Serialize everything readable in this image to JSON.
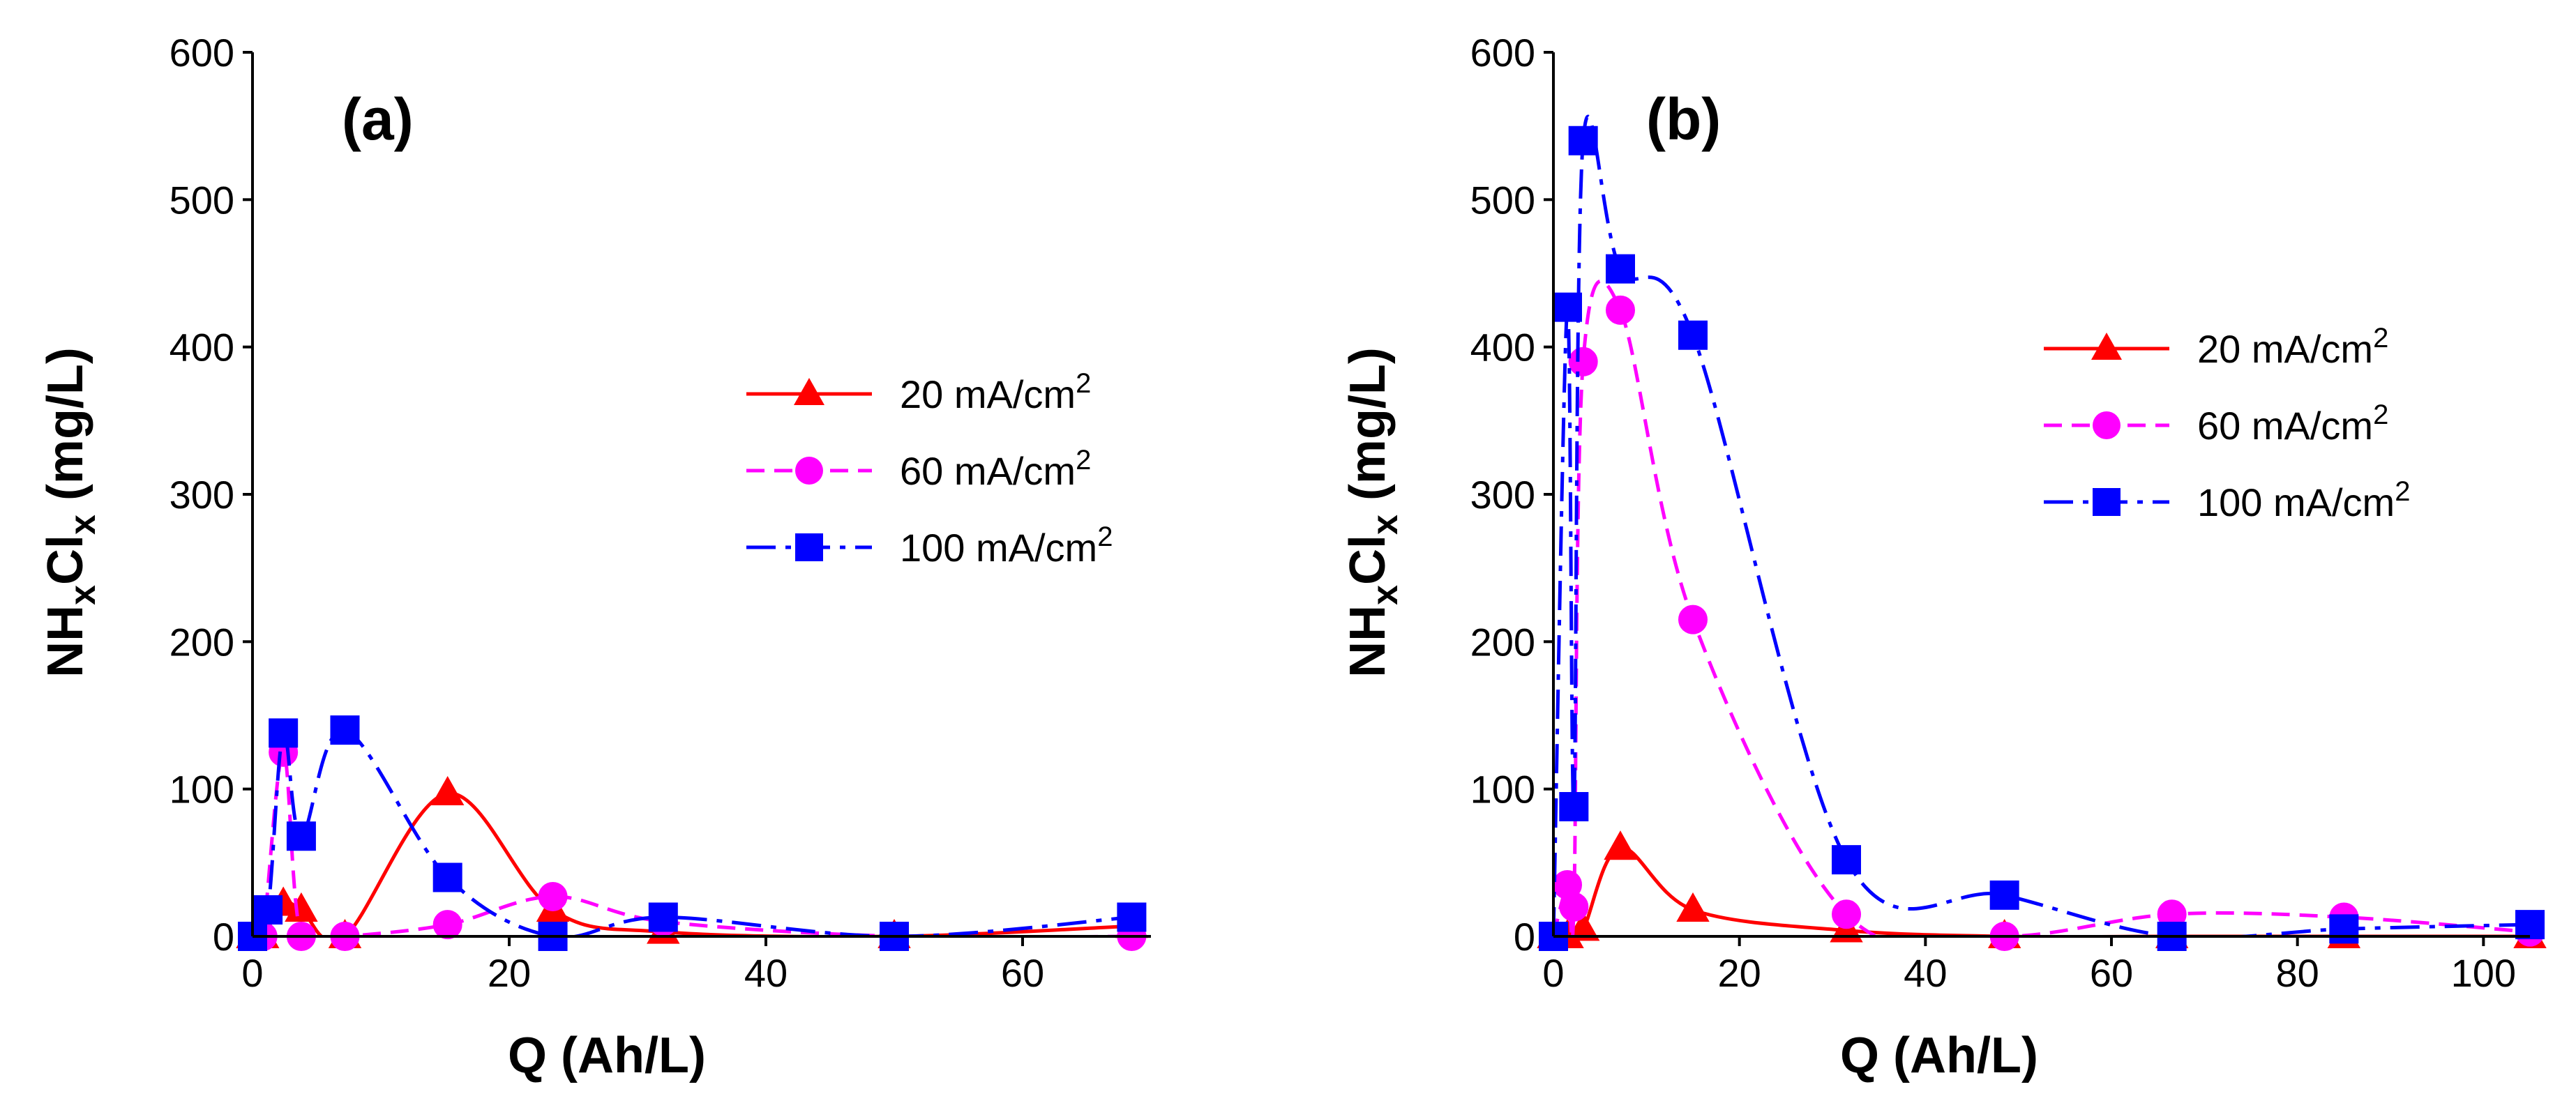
{
  "chart_data": [
    {
      "type": "line",
      "panel_label": "(a)",
      "xlabel": "Q (Ah/L)",
      "ylabel": {
        "base": "NH",
        "sub1": "x",
        "mid": "Cl",
        "sub2": "x",
        "unit": " (mg/L)"
      },
      "xlim": [
        0,
        70
      ],
      "ylim": [
        0,
        600
      ],
      "xticks": [
        0,
        20,
        40,
        60
      ],
      "yticks": [
        0,
        100,
        200,
        300,
        400,
        500,
        600
      ],
      "xtick_labels": [
        "0",
        "20",
        "40",
        "60"
      ],
      "ytick_labels": [
        "0",
        "100",
        "200",
        "300",
        "400",
        "500",
        "600"
      ],
      "legend_position": "center-right",
      "series": [
        {
          "name": "20 mA/cm",
          "superscript": "2",
          "color": "#ff0000",
          "marker": "triangle",
          "dash": "solid",
          "x": [
            0,
            0.8,
            2.4,
            3.8,
            7.2,
            15.2,
            23.4,
            32,
            50,
            68.5
          ],
          "y": [
            0,
            0,
            22,
            18,
            0,
            97,
            18,
            3,
            0,
            7
          ]
        },
        {
          "name": "60 mA/cm",
          "superscript": "2",
          "color": "#ff00ff",
          "marker": "circle",
          "dash": "dash",
          "x": [
            0,
            0.8,
            2.4,
            3.8,
            7.2,
            15.2,
            23.4,
            32,
            50,
            68.5
          ],
          "y": [
            0,
            0,
            125,
            0,
            0,
            8,
            27,
            10,
            0,
            0
          ]
        },
        {
          "name": "100 mA/cm",
          "superscript": "2",
          "color": "#0000ff",
          "marker": "square",
          "dash": "dashdot",
          "x": [
            0,
            1.2,
            2.4,
            3.8,
            7.2,
            15.2,
            23.4,
            32,
            50,
            68.5
          ],
          "y": [
            0,
            18,
            138,
            68,
            140,
            40,
            0,
            13,
            0,
            13
          ]
        }
      ]
    },
    {
      "type": "line",
      "panel_label": "(b)",
      "xlabel": "Q (Ah/L)",
      "ylabel": {
        "base": "NH",
        "sub1": "x",
        "mid": "Cl",
        "sub2": "x",
        "unit": " (mg/L)"
      },
      "xlim": [
        0,
        105
      ],
      "ylim": [
        0,
        600
      ],
      "xticks": [
        0,
        20,
        40,
        60,
        80,
        100
      ],
      "yticks": [
        0,
        100,
        200,
        300,
        400,
        500,
        600
      ],
      "xtick_labels": [
        "0",
        "20",
        "40",
        "60",
        "80",
        "100"
      ],
      "ytick_labels": [
        "0",
        "100",
        "200",
        "300",
        "400",
        "500",
        "600"
      ],
      "legend_position": "center-right",
      "series": [
        {
          "name": "20 mA/cm",
          "superscript": "2",
          "color": "#ff0000",
          "marker": "triangle",
          "dash": "solid",
          "x": [
            0,
            1.5,
            3.2,
            7.2,
            15,
            31.5,
            48.5,
            66.5,
            85,
            105
          ],
          "y": [
            0,
            0,
            5,
            60,
            18,
            4,
            0,
            0,
            0,
            0
          ]
        },
        {
          "name": "60 mA/cm",
          "superscript": "2",
          "color": "#ff00ff",
          "marker": "circle",
          "dash": "dash",
          "x": [
            0,
            1.5,
            2.2,
            3.2,
            7.2,
            15,
            31.5,
            48.5,
            66.5,
            85,
            105
          ],
          "y": [
            0,
            35,
            20,
            390,
            425,
            215,
            15,
            0,
            15,
            13,
            3
          ]
        },
        {
          "name": "100 mA/cm",
          "superscript": "2",
          "color": "#0000ff",
          "marker": "square",
          "dash": "dashdot",
          "x": [
            0,
            1.5,
            2.2,
            3.2,
            7.2,
            15,
            31.5,
            48.5,
            66.5,
            85,
            105
          ],
          "y": [
            0,
            427,
            88,
            540,
            453,
            408,
            52,
            28,
            0,
            5,
            8
          ]
        }
      ]
    }
  ]
}
